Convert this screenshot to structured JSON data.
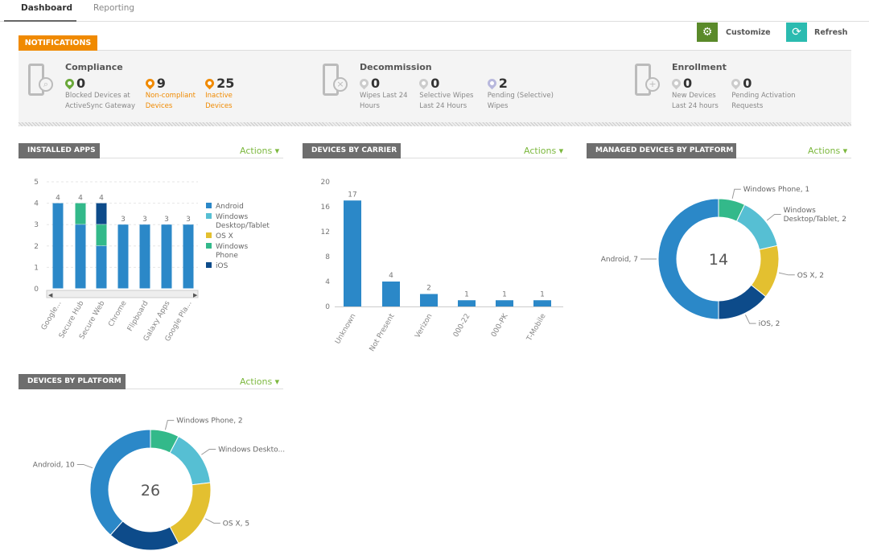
{
  "tabs": [
    {
      "label": "Dashboard",
      "active": true
    },
    {
      "label": "Reporting",
      "active": false
    }
  ],
  "toolbar": {
    "customize": "Customize",
    "refresh": "Refresh",
    "customize_icon": "gear-icon",
    "refresh_icon": "refresh-icon",
    "customize_color": "#5a8a2a",
    "refresh_color": "#2bbbb0"
  },
  "notifications": {
    "title": "NOTIFICATIONS",
    "groups": [
      {
        "title": "Compliance",
        "icon": "phone-search-icon",
        "metrics": [
          {
            "value": "0",
            "label": "Blocked Devices at\nActiveSync Gateway",
            "color": "#6aa83a",
            "label_color": "#888"
          },
          {
            "value": "9",
            "label": "Non-compliant\nDevices",
            "color": "#f08a00",
            "label_color": "#f08a00"
          },
          {
            "value": "25",
            "label": "Inactive\nDevices",
            "color": "#f08a00",
            "label_color": "#f08a00"
          }
        ]
      },
      {
        "title": "Decommission",
        "icon": "phone-wipe-icon",
        "metrics": [
          {
            "value": "0",
            "label": "Wipes Last 24\nHours",
            "color": "#ccc",
            "label_color": "#888"
          },
          {
            "value": "0",
            "label": "Selective Wipes\nLast 24 Hours",
            "color": "#ccc",
            "label_color": "#888"
          },
          {
            "value": "2",
            "label": "Pending (Selective)\nWipes",
            "color": "#b8b8dd",
            "label_color": "#888"
          }
        ]
      },
      {
        "title": "Enrollment",
        "icon": "phone-add-icon",
        "metrics": [
          {
            "value": "0",
            "label": "New Devices\nLast 24 hours",
            "color": "#ccc",
            "label_color": "#888"
          },
          {
            "value": "0",
            "label": "Pending Activation\nRequests",
            "color": "#ccc",
            "label_color": "#888"
          }
        ]
      }
    ]
  },
  "panels": {
    "installed_apps": {
      "title": "INSTALLED APPS",
      "actions": "Actions ▾"
    },
    "carrier": {
      "title": "DEVICES BY CARRIER",
      "actions": "Actions ▾"
    },
    "managed": {
      "title": "MANAGED DEVICES BY PLATFORM",
      "actions": "Actions ▾"
    },
    "platform": {
      "title": "DEVICES BY PLATFORM",
      "actions": "Actions ▾"
    }
  },
  "colors": {
    "Android": "#2b88c8",
    "Windows Desktop/Tablet": "#56bfd3",
    "OS X": "#e3c030",
    "Windows Phone": "#33b98a",
    "iOS": "#0d4b8a"
  },
  "chart_data": [
    {
      "type": "bar",
      "stacked": true,
      "ylim": [
        0,
        5
      ],
      "yticks": [
        0,
        1,
        2,
        3,
        4,
        5
      ],
      "grid": true,
      "legend": "right",
      "categories": [
        "Google...",
        "Secure Hub",
        "Secure Web",
        "Chrome",
        "Flipboard",
        "Galaxy Apps",
        "Google Pla..."
      ],
      "totals": [
        4,
        4,
        4,
        3,
        3,
        3,
        3
      ],
      "series": [
        {
          "name": "Android",
          "values": [
            4,
            3,
            2,
            3,
            3,
            3,
            3
          ]
        },
        {
          "name": "Windows Desktop/Tablet",
          "values": [
            0,
            0,
            0,
            0,
            0,
            0,
            0
          ]
        },
        {
          "name": "OS X",
          "values": [
            0,
            0,
            0,
            0,
            0,
            0,
            0
          ]
        },
        {
          "name": "Windows Phone",
          "values": [
            0,
            1,
            1,
            0,
            0,
            0,
            0
          ]
        },
        {
          "name": "iOS",
          "values": [
            0,
            0,
            1,
            0,
            0,
            0,
            0
          ]
        }
      ],
      "legend_labels": [
        [
          "Android"
        ],
        [
          "Windows",
          "Desktop/Tablet"
        ],
        [
          "OS X"
        ],
        [
          "Windows",
          "Phone"
        ],
        [
          "iOS"
        ]
      ]
    },
    {
      "type": "bar",
      "ylim": [
        0,
        20
      ],
      "yticks": [
        0,
        4,
        8,
        12,
        16,
        20
      ],
      "grid": false,
      "categories": [
        "Unknown",
        "Not Present",
        "Verizon",
        "000-22",
        "000-PK",
        "T-Mobile"
      ],
      "values": [
        17,
        4,
        2,
        1,
        1,
        1
      ],
      "color": "#2b88c8"
    },
    {
      "type": "pie",
      "donut": true,
      "center_label": "14",
      "slices": [
        {
          "name": "Windows Phone",
          "value": 1,
          "label": "Windows Phone, 1"
        },
        {
          "name": "Windows Desktop/Tablet",
          "value": 2,
          "label": "Windows\nDesktop/Tablet, 2"
        },
        {
          "name": "OS X",
          "value": 2,
          "label": "OS X, 2"
        },
        {
          "name": "iOS",
          "value": 2,
          "label": "iOS, 2"
        },
        {
          "name": "Android",
          "value": 7,
          "label": "Android, 7"
        }
      ]
    },
    {
      "type": "pie",
      "donut": true,
      "center_label": "26",
      "slices": [
        {
          "name": "Windows Phone",
          "value": 2,
          "label": "Windows Phone, 2"
        },
        {
          "name": "Windows Desktop/Tablet",
          "value": 4,
          "label": "Windows Deskto..."
        },
        {
          "name": "OS X",
          "value": 5,
          "label": "OS X, 5"
        },
        {
          "name": "iOS",
          "value": 5,
          "label": ""
        },
        {
          "name": "Android",
          "value": 10,
          "label": "Android, 10"
        }
      ]
    }
  ]
}
